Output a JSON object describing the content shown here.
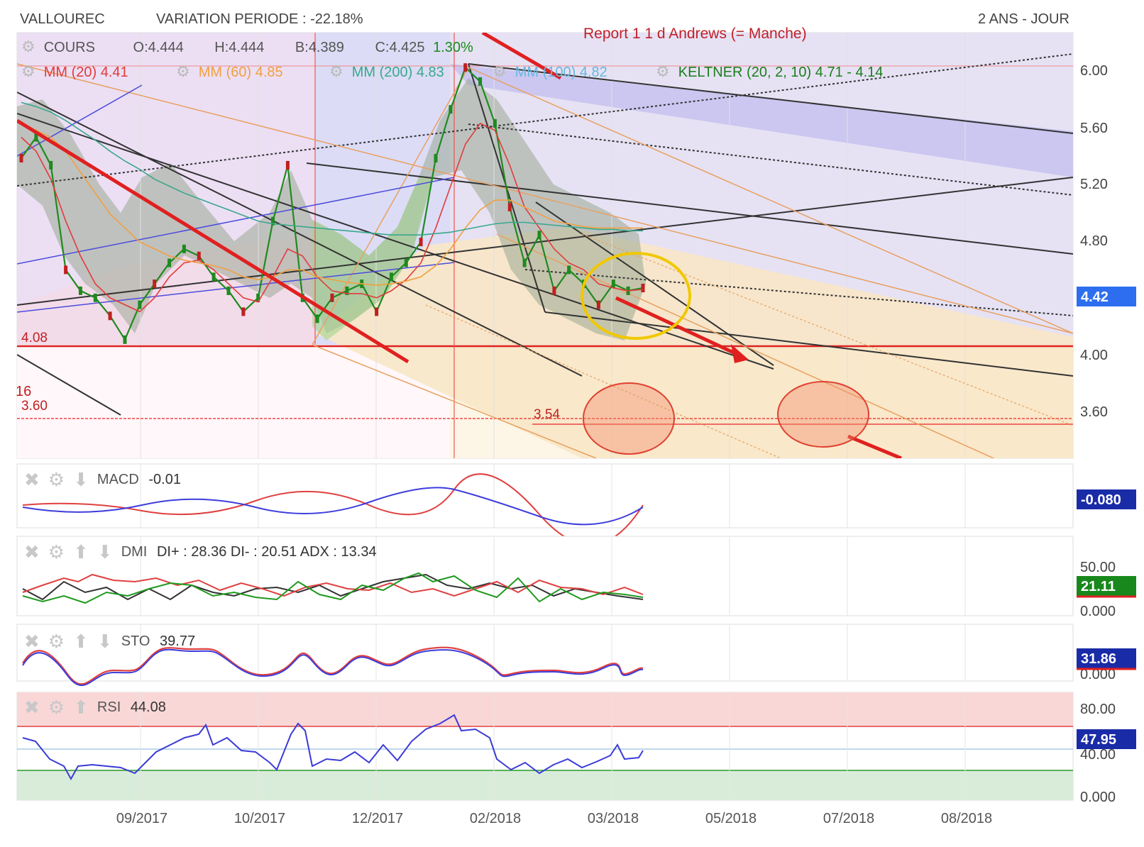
{
  "header": {
    "symbol": "VALLOUREC",
    "variation_label": "VARIATION PERIODE : -22.18%",
    "period": "2 ANS - JOUR"
  },
  "legend": {
    "cours": {
      "name": "COURS",
      "o_label": "O:",
      "o": "4.444",
      "h_label": "H:",
      "h": "4.444",
      "b_label": "B:",
      "b": "4.389",
      "c_label": "C:",
      "c": "4.425",
      "change": "1.30%"
    },
    "ma20": {
      "label": "MM (20)",
      "value": "4.41",
      "color": "#e23b3b"
    },
    "ma60": {
      "label": "MM (60)",
      "value": "4.85",
      "color": "#f0a040"
    },
    "ma200": {
      "label": "MM (200)",
      "value": "4.83",
      "color": "#39a88c"
    },
    "ma100": {
      "label": "MM (100)",
      "value": "4.82",
      "color": "#66b7e0"
    },
    "keltner": {
      "label": "KELTNER (20, 2, 10)",
      "value": "4.71 - 4.14",
      "color": "#1c7d1c"
    }
  },
  "annotations": {
    "andrews": "Report 1 1 d Andrews (= Manche)",
    "level_408": "4.08",
    "level_360": "3.60",
    "level_16": "16",
    "level_354": "3.54"
  },
  "panels": {
    "macd": {
      "name": "MACD",
      "value": "-0.01",
      "badge": "-0.080"
    },
    "dmi": {
      "name": "DMI",
      "value": "DI+ : 28.36 DI- : 20.51 ADX : 13.34",
      "badge": "21.11"
    },
    "sto": {
      "name": "STO",
      "value": "39.77",
      "badge": "31.86"
    },
    "rsi": {
      "name": "RSI",
      "value": "44.08",
      "badge": "47.95"
    }
  },
  "chart_data": {
    "type": "line",
    "title": "VALLOUREC",
    "xlabel": "",
    "ylabel": "",
    "x_ticks": [
      "09/2017",
      "10/2017",
      "12/2017",
      "02/2018",
      "03/2018",
      "05/2018",
      "07/2018",
      "08/2018"
    ],
    "price_axis": {
      "ticks": [
        "6.00",
        "5.60",
        "5.20",
        "4.80",
        "4.00",
        "3.60"
      ],
      "ylim": [
        3.2,
        6.25
      ],
      "current_badge": "4.42"
    },
    "dmi_axis": {
      "ticks": [
        "50.00",
        "0.000"
      ]
    },
    "sto_axis": {
      "ticks": [
        "0.000"
      ]
    },
    "rsi_axis": {
      "ticks": [
        "80.00",
        "40.00",
        "0.000"
      ]
    },
    "series": [
      {
        "name": "COURS",
        "color": "#1f8a1f",
        "values": [
          5.35,
          5.5,
          5.3,
          4.55,
          4.4,
          4.35,
          4.22,
          4.05,
          4.3,
          4.45,
          4.6,
          4.7,
          4.65,
          4.5,
          4.4,
          4.25,
          4.35,
          4.9,
          5.3,
          4.35,
          4.2,
          4.35,
          4.4,
          4.45,
          4.25,
          4.5,
          4.6,
          4.75,
          5.35,
          5.7,
          6.0,
          5.9,
          5.6,
          5.0,
          4.6,
          4.8,
          4.4,
          4.55,
          4.45,
          4.3,
          4.45,
          4.4,
          4.42
        ]
      },
      {
        "name": "MM (20)",
        "color": "#e23b3b",
        "values": [
          5.5,
          5.4,
          5.2,
          4.9,
          4.65,
          4.45,
          4.35,
          4.3,
          4.25,
          4.35,
          4.5,
          4.6,
          4.62,
          4.55,
          4.45,
          4.35,
          4.32,
          4.5,
          4.7,
          4.65,
          4.5,
          4.4,
          4.38,
          4.38,
          4.35,
          4.4,
          4.48,
          4.6,
          4.85,
          5.15,
          5.45,
          5.6,
          5.55,
          5.3,
          5.0,
          4.85,
          4.7,
          4.6,
          4.55,
          4.45,
          4.42,
          4.4,
          4.41
        ]
      },
      {
        "name": "MM (60)",
        "color": "#f0a040",
        "values": [
          5.6,
          5.55,
          5.5,
          5.4,
          5.25,
          5.1,
          4.95,
          4.85,
          4.75,
          4.7,
          4.65,
          4.62,
          4.6,
          4.58,
          4.55,
          4.5,
          4.48,
          4.5,
          4.55,
          4.55,
          4.5,
          4.48,
          4.46,
          4.45,
          4.44,
          4.45,
          4.47,
          4.5,
          4.58,
          4.7,
          4.85,
          4.98,
          5.05,
          5.05,
          5.0,
          4.95,
          4.9,
          4.88,
          4.86,
          4.85,
          4.85,
          4.85,
          4.85
        ]
      },
      {
        "name": "MM (200)",
        "color": "#39a88c",
        "values": [
          5.75,
          5.72,
          5.68,
          5.62,
          5.55,
          5.48,
          5.4,
          5.33,
          5.27,
          5.2,
          5.15,
          5.1,
          5.06,
          5.02,
          4.98,
          4.94,
          4.9,
          4.88,
          4.87,
          4.86,
          4.85,
          4.84,
          4.83,
          4.82,
          4.81,
          4.8,
          4.8,
          4.8,
          4.81,
          4.82,
          4.84,
          4.86,
          4.88,
          4.89,
          4.89,
          4.88,
          4.87,
          4.86,
          4.85,
          4.84,
          4.84,
          4.83,
          4.83
        ]
      }
    ]
  }
}
